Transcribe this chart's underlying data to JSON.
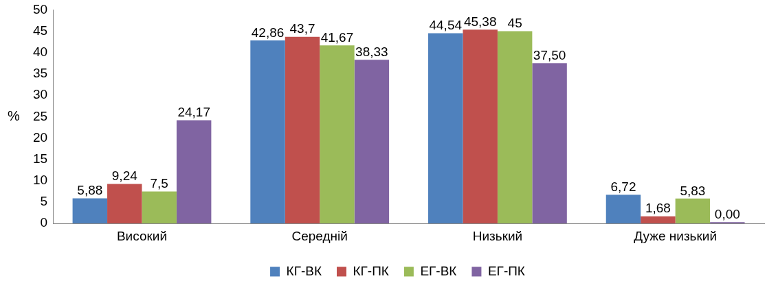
{
  "chart_data": {
    "type": "bar",
    "ylabel": "%",
    "categories": [
      "Високий",
      "Середній",
      "Низький",
      "Дуже низький"
    ],
    "series": [
      {
        "name": "КГ-ВК",
        "color": "#4f81bd",
        "values": [
          5.88,
          42.86,
          44.54,
          6.72
        ],
        "value_labels": [
          "5,88",
          "42,86",
          "44,54",
          "6,72"
        ]
      },
      {
        "name": "КГ-ПК",
        "color": "#c0504d",
        "values": [
          9.24,
          43.7,
          45.38,
          1.68
        ],
        "value_labels": [
          "9,24",
          "43,7",
          "45,38",
          "1,68"
        ]
      },
      {
        "name": "ЕГ-ВК",
        "color": "#9bbb59",
        "values": [
          7.5,
          41.67,
          45,
          5.83
        ],
        "value_labels": [
          "7,5",
          "41,67",
          "45",
          "5,83"
        ]
      },
      {
        "name": "ЕГ-ПК",
        "color": "#8064a2",
        "values": [
          24.17,
          38.33,
          37.5,
          0
        ],
        "value_labels": [
          "24,17",
          "38,33",
          "37,50",
          "0,00"
        ]
      }
    ],
    "ylim": [
      0,
      50
    ],
    "yticks": [
      0,
      5,
      10,
      15,
      20,
      25,
      30,
      35,
      40,
      45,
      50
    ],
    "grid": false,
    "legend": "bottom"
  }
}
